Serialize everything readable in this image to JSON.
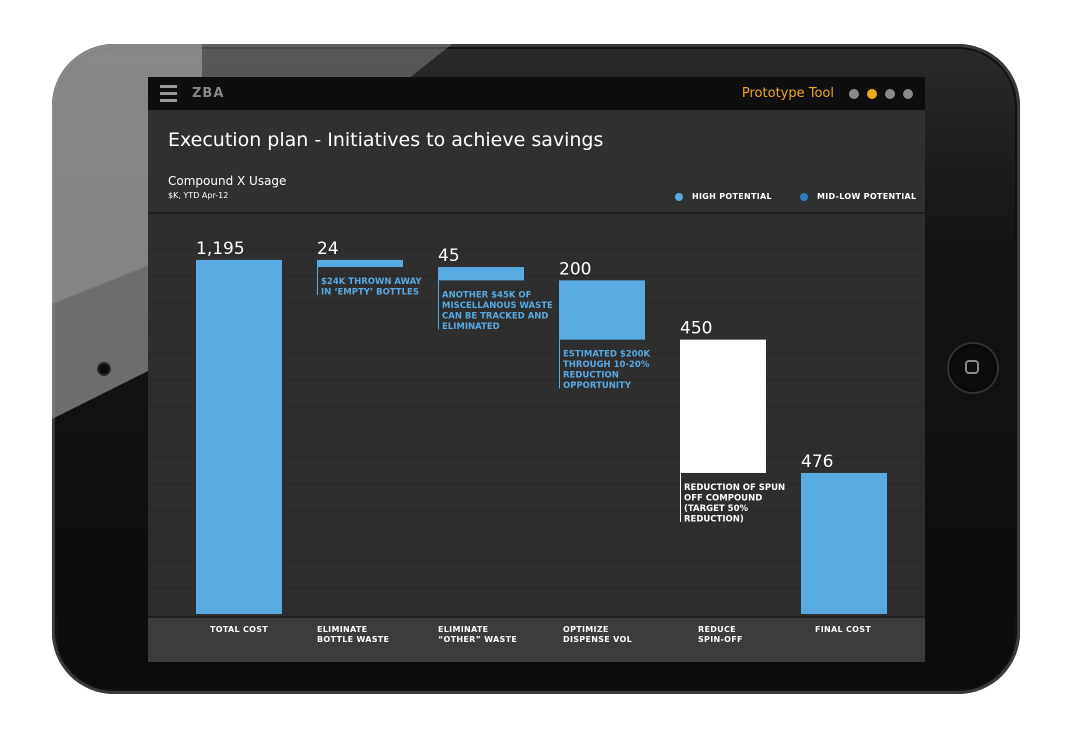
{
  "app": {
    "brand": "ZBA",
    "mode_label": "Prototype Tool",
    "pager": {
      "count": 4,
      "active_index": 1
    }
  },
  "page": {
    "title": "Execution plan - Initiatives to achieve savings"
  },
  "colors": {
    "high_potential": "#5aaae2",
    "mid_low_potential": "#2f7ac0",
    "highlight": "#ffffff",
    "accent": "#f0a81c"
  },
  "legend": [
    {
      "label": "HIGH POTENTIAL",
      "color": "#5aaae2"
    },
    {
      "label": "MID-LOW POTENTIAL",
      "color": "#2f7ac0"
    }
  ],
  "chart_data": {
    "type": "bar",
    "subtype": "waterfall",
    "title": "Compound X Usage",
    "subtitle": "$K, YTD Apr-12",
    "ylim": [
      0,
      1350
    ],
    "grid": true,
    "legend_position": "top-right",
    "categories": [
      [
        "TOTAL COST"
      ],
      [
        "ELIMINATE",
        "BOTTLE WASTE"
      ],
      [
        "ELIMINATE",
        "“OTHER” WASTE"
      ],
      [
        "OPTIMIZE",
        "DISPENSE VOL"
      ],
      [
        "REDUCE",
        "SPIN-OFF"
      ],
      [
        "FINAL COST"
      ]
    ],
    "bars": [
      {
        "kind": "total",
        "value": 1195,
        "label": "1,195",
        "color": "#5aaae2",
        "annotation": []
      },
      {
        "kind": "decrease",
        "value": 24,
        "label": "24",
        "color": "#5aaae2",
        "annotation": [
          "$24K THROWN AWAY",
          "IN ‘EMPTY’ BOTTLES"
        ]
      },
      {
        "kind": "decrease",
        "value": 45,
        "label": "45",
        "color": "#5aaae2",
        "annotation": [
          "ANOTHER $45K OF",
          "MISCELLANOUS WASTE",
          "CAN BE TRACKED AND",
          "ELIMINATED"
        ]
      },
      {
        "kind": "decrease",
        "value": 200,
        "label": "200",
        "color": "#5aaae2",
        "annotation": [
          "ESTIMATED $200K",
          "THROUGH 10-20%",
          "REDUCTION",
          "OPPORTUNITY"
        ]
      },
      {
        "kind": "decrease",
        "value": 450,
        "label": "450",
        "color": "#ffffff",
        "annotation": [
          "REDUCTION OF SPUN",
          "OFF COMPOUND",
          "(TARGET 50%",
          "REDUCTION)"
        ]
      },
      {
        "kind": "total",
        "value": 476,
        "label": "476",
        "color": "#5aaae2",
        "annotation": []
      }
    ]
  }
}
